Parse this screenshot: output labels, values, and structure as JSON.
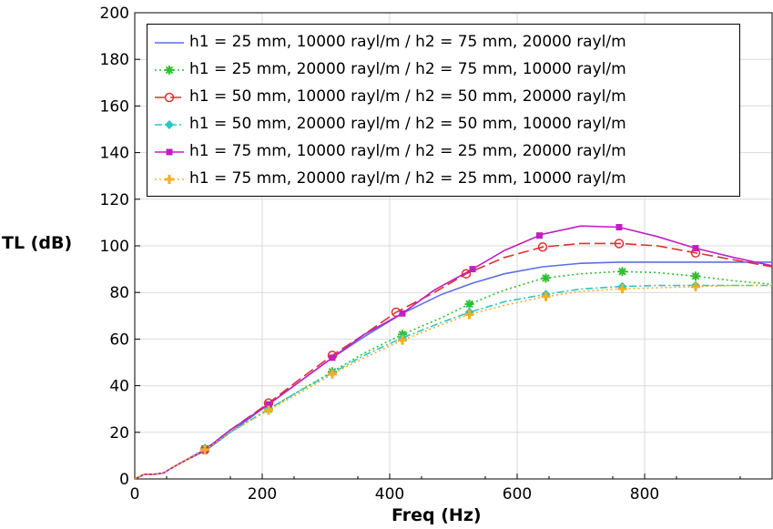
{
  "chart_data": {
    "type": "line",
    "xlabel": "Freq (Hz)",
    "ylabel": "TL (dB)",
    "xlim": [
      0,
      1000
    ],
    "ylim": [
      0,
      200
    ],
    "xticks": [
      0,
      200,
      400,
      600,
      800
    ],
    "yticks": [
      0,
      20,
      40,
      60,
      80,
      100,
      120,
      140,
      160,
      180,
      200
    ],
    "grid": true,
    "legend_position": "top",
    "series": [
      {
        "name": "h1 = 25 mm, 10000 rayl/m / h2 = 75 mm, 20000 rayl/m",
        "color": "#5b6fe8",
        "dash": "solid",
        "marker": "none",
        "x": [
          0,
          15,
          30,
          45,
          60,
          80,
          110,
          150,
          210,
          260,
          310,
          360,
          420,
          480,
          530,
          580,
          640,
          700,
          760,
          820,
          880,
          940,
          1000
        ],
        "y": [
          0,
          2,
          2,
          2.5,
          5,
          8,
          12,
          20,
          32,
          42,
          52,
          61,
          71,
          79,
          84,
          88,
          91,
          92.5,
          93,
          93,
          93,
          93,
          93
        ]
      },
      {
        "name": "h1 = 25 mm, 20000 rayl/m / h2 = 75 mm, 10000 rayl/m",
        "color": "#2fbf2f",
        "dash": "dotted",
        "marker": "asterisk",
        "x": [
          0,
          15,
          30,
          45,
          60,
          80,
          110,
          150,
          210,
          260,
          310,
          360,
          420,
          480,
          525,
          580,
          640,
          700,
          760,
          820,
          880,
          940,
          1000
        ],
        "y": [
          0,
          2,
          2,
          2.5,
          5,
          8,
          13,
          20,
          30,
          38,
          46,
          54,
          62,
          69,
          75,
          81,
          86,
          88,
          89,
          88.5,
          87,
          85,
          83.5
        ],
        "marker_x": [
          110,
          210,
          310,
          420,
          525,
          645,
          765,
          880
        ]
      },
      {
        "name": "h1 = 50 mm, 10000 rayl/m / h2 = 50 mm, 20000 rayl/m",
        "color": "#e03030",
        "dash": "longdash",
        "marker": "circle",
        "x": [
          0,
          15,
          30,
          45,
          60,
          80,
          110,
          150,
          210,
          260,
          310,
          360,
          410,
          470,
          520,
          580,
          640,
          700,
          760,
          820,
          880,
          940,
          1000
        ],
        "y": [
          0,
          2,
          2,
          2.5,
          5,
          8,
          12.5,
          21,
          32.5,
          43,
          53,
          62,
          71.5,
          80,
          88,
          95,
          99.5,
          101,
          101,
          100,
          97,
          94,
          91
        ],
        "marker_x": [
          110,
          210,
          310,
          410,
          520,
          640,
          760,
          880
        ]
      },
      {
        "name": "h1 = 50 mm, 20000 rayl/m / h2 = 50 mm, 10000 rayl/m",
        "color": "#2ec4c4",
        "dash": "dashdot",
        "marker": "diamond",
        "x": [
          0,
          15,
          30,
          45,
          60,
          80,
          110,
          150,
          210,
          260,
          310,
          360,
          420,
          480,
          525,
          580,
          640,
          700,
          760,
          820,
          880,
          940,
          1000
        ],
        "y": [
          0,
          2,
          2,
          2.5,
          5,
          8,
          13,
          20,
          30,
          38,
          45.5,
          53,
          60.5,
          67,
          71.5,
          76,
          79,
          81.5,
          82.5,
          83,
          83,
          83,
          83
        ],
        "marker_x": [
          110,
          210,
          310,
          420,
          525,
          645,
          765,
          880
        ]
      },
      {
        "name": "h1 = 75 mm, 10000 rayl/m / h2 = 25 mm, 20000 rayl/m",
        "color": "#c020c0",
        "dash": "solid",
        "marker": "square",
        "x": [
          0,
          15,
          30,
          45,
          60,
          80,
          110,
          150,
          210,
          260,
          310,
          360,
          420,
          470,
          530,
          580,
          640,
          700,
          760,
          820,
          880,
          940,
          1000
        ],
        "y": [
          0,
          2,
          2,
          2.5,
          5,
          8,
          12.5,
          21,
          32,
          42,
          52,
          62,
          71,
          81,
          90,
          98,
          105,
          108.5,
          108,
          104,
          99,
          95,
          91.5
        ],
        "marker_x": [
          110,
          210,
          310,
          420,
          530,
          635,
          760,
          880
        ]
      },
      {
        "name": "h1 = 75 mm, 20000 rayl/m / h2 = 25 mm, 10000 rayl/m",
        "color": "#f2b020",
        "dash": "dotted",
        "marker": "plus",
        "x": [
          0,
          15,
          30,
          45,
          60,
          80,
          110,
          150,
          210,
          260,
          310,
          360,
          420,
          480,
          525,
          580,
          640,
          700,
          760,
          820,
          880,
          940,
          1000
        ],
        "y": [
          0,
          2,
          2,
          2.5,
          5,
          8,
          12.5,
          20,
          29.5,
          37,
          45,
          52,
          59.5,
          66,
          70.5,
          74.5,
          78,
          80.5,
          81.5,
          82,
          82.5,
          83,
          83
        ],
        "marker_x": [
          110,
          210,
          310,
          420,
          525,
          645,
          765,
          880
        ]
      }
    ]
  }
}
